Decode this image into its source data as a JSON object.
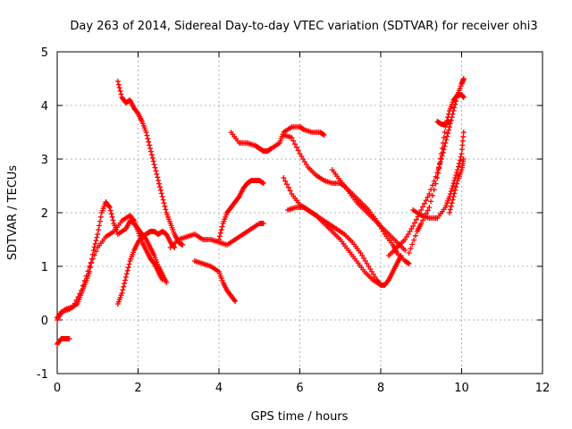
{
  "chart_data": {
    "type": "scatter",
    "title": "Day 263 of 2014, Sidereal Day-to-day VTEC variation (SDTVAR) for receiver ohi3",
    "xlabel": "GPS time / hours",
    "ylabel": "SDTVAR / TECUs",
    "xlim": [
      0,
      12
    ],
    "ylim": [
      -1,
      5
    ],
    "xticks": [
      0,
      2,
      4,
      6,
      8,
      10,
      12
    ],
    "yticks": [
      -1,
      0,
      1,
      2,
      3,
      4,
      5
    ],
    "xtick_labels": [
      "0",
      "2",
      "4",
      "6",
      "8",
      "10",
      "12"
    ],
    "ytick_labels": [
      "-1",
      "0",
      "1",
      "2",
      "3",
      "4",
      "5"
    ],
    "grid": true,
    "marker": "+",
    "color": "#ff0000",
    "series": [
      {
        "points": [
          [
            0.0,
            -0.45
          ],
          [
            0.1,
            -0.35
          ],
          [
            0.2,
            -0.35
          ],
          [
            0.3,
            -0.35
          ]
        ]
      },
      {
        "points": [
          [
            0.0,
            0.0
          ],
          [
            0.1,
            0.15
          ],
          [
            0.3,
            0.2
          ],
          [
            0.5,
            0.3
          ],
          [
            0.6,
            0.5
          ],
          [
            0.7,
            0.7
          ],
          [
            0.8,
            0.9
          ],
          [
            0.9,
            1.3
          ],
          [
            1.0,
            1.6
          ],
          [
            1.1,
            2.0
          ],
          [
            1.2,
            2.2
          ],
          [
            1.3,
            2.1
          ],
          [
            1.4,
            1.8
          ],
          [
            1.5,
            1.6
          ],
          [
            1.7,
            1.7
          ],
          [
            1.8,
            1.85
          ],
          [
            1.9,
            1.8
          ],
          [
            2.0,
            1.7
          ],
          [
            2.1,
            1.6
          ],
          [
            2.2,
            1.5
          ],
          [
            2.3,
            1.35
          ],
          [
            2.4,
            1.2
          ],
          [
            2.5,
            1.0
          ],
          [
            2.6,
            0.85
          ],
          [
            2.7,
            0.7
          ]
        ]
      },
      {
        "points": [
          [
            0.0,
            0.05
          ],
          [
            0.2,
            0.2
          ],
          [
            0.4,
            0.25
          ],
          [
            0.6,
            0.55
          ],
          [
            0.8,
            1.0
          ],
          [
            1.0,
            1.35
          ],
          [
            1.2,
            1.55
          ],
          [
            1.4,
            1.65
          ],
          [
            1.6,
            1.85
          ],
          [
            1.8,
            1.95
          ],
          [
            1.9,
            1.85
          ],
          [
            2.0,
            1.65
          ],
          [
            2.1,
            1.45
          ],
          [
            2.2,
            1.3
          ],
          [
            2.3,
            1.15
          ],
          [
            2.4,
            1.05
          ],
          [
            2.5,
            0.9
          ],
          [
            2.6,
            0.75
          ]
        ]
      },
      {
        "points": [
          [
            1.5,
            0.3
          ],
          [
            1.6,
            0.5
          ],
          [
            1.7,
            0.8
          ],
          [
            1.8,
            1.1
          ],
          [
            1.9,
            1.3
          ],
          [
            2.0,
            1.45
          ],
          [
            2.1,
            1.55
          ],
          [
            2.2,
            1.6
          ],
          [
            2.3,
            1.65
          ],
          [
            2.4,
            1.65
          ],
          [
            2.5,
            1.6
          ],
          [
            2.6,
            1.65
          ],
          [
            2.7,
            1.6
          ],
          [
            2.8,
            1.45
          ],
          [
            2.9,
            1.35
          ]
        ]
      },
      {
        "points": [
          [
            1.5,
            4.45
          ],
          [
            1.6,
            4.15
          ],
          [
            1.7,
            4.05
          ],
          [
            1.8,
            4.1
          ],
          [
            1.9,
            3.95
          ],
          [
            2.0,
            3.85
          ],
          [
            2.1,
            3.7
          ],
          [
            2.2,
            3.5
          ],
          [
            2.3,
            3.2
          ],
          [
            2.4,
            2.9
          ],
          [
            2.5,
            2.6
          ],
          [
            2.6,
            2.3
          ],
          [
            2.7,
            2.0
          ],
          [
            2.8,
            1.8
          ],
          [
            2.9,
            1.6
          ],
          [
            3.0,
            1.45
          ],
          [
            3.1,
            1.4
          ]
        ]
      },
      {
        "points": [
          [
            2.8,
            1.35
          ],
          [
            3.0,
            1.5
          ],
          [
            3.2,
            1.55
          ],
          [
            3.4,
            1.6
          ],
          [
            3.6,
            1.5
          ],
          [
            3.8,
            1.5
          ],
          [
            4.0,
            1.45
          ],
          [
            4.2,
            1.4
          ],
          [
            4.4,
            1.5
          ],
          [
            4.6,
            1.6
          ],
          [
            4.8,
            1.7
          ],
          [
            5.0,
            1.8
          ],
          [
            5.1,
            1.8
          ]
        ]
      },
      {
        "points": [
          [
            3.4,
            1.1
          ],
          [
            3.6,
            1.05
          ],
          [
            3.8,
            1.0
          ],
          [
            4.0,
            0.9
          ],
          [
            4.1,
            0.7
          ],
          [
            4.2,
            0.55
          ],
          [
            4.3,
            0.45
          ],
          [
            4.4,
            0.35
          ]
        ]
      },
      {
        "points": [
          [
            4.0,
            1.5
          ],
          [
            4.1,
            1.8
          ],
          [
            4.2,
            2.0
          ],
          [
            4.3,
            2.1
          ],
          [
            4.4,
            2.2
          ],
          [
            4.5,
            2.3
          ],
          [
            4.6,
            2.45
          ],
          [
            4.7,
            2.55
          ],
          [
            4.8,
            2.6
          ],
          [
            4.9,
            2.6
          ],
          [
            5.0,
            2.6
          ],
          [
            5.1,
            2.55
          ]
        ]
      },
      {
        "points": [
          [
            4.3,
            3.5
          ],
          [
            4.5,
            3.3
          ],
          [
            4.7,
            3.3
          ],
          [
            4.9,
            3.25
          ],
          [
            5.0,
            3.2
          ],
          [
            5.1,
            3.15
          ],
          [
            5.2,
            3.15
          ],
          [
            5.3,
            3.2
          ],
          [
            5.5,
            3.3
          ],
          [
            5.6,
            3.5
          ],
          [
            5.8,
            3.6
          ],
          [
            6.0,
            3.6
          ],
          [
            6.1,
            3.55
          ],
          [
            6.3,
            3.5
          ],
          [
            6.5,
            3.5
          ],
          [
            6.6,
            3.45
          ]
        ]
      },
      {
        "points": [
          [
            5.6,
            3.45
          ],
          [
            5.8,
            3.4
          ],
          [
            6.0,
            3.1
          ],
          [
            6.2,
            2.85
          ],
          [
            6.4,
            2.7
          ],
          [
            6.6,
            2.6
          ],
          [
            6.8,
            2.55
          ],
          [
            7.0,
            2.55
          ],
          [
            7.1,
            2.5
          ],
          [
            7.3,
            2.35
          ],
          [
            7.5,
            2.2
          ],
          [
            7.7,
            2.05
          ],
          [
            7.9,
            1.85
          ],
          [
            8.1,
            1.6
          ],
          [
            8.3,
            1.4
          ],
          [
            8.4,
            1.25
          ],
          [
            8.6,
            1.1
          ],
          [
            8.7,
            1.05
          ]
        ]
      },
      {
        "points": [
          [
            5.7,
            2.05
          ],
          [
            5.9,
            2.1
          ],
          [
            6.1,
            2.1
          ],
          [
            6.3,
            2.0
          ],
          [
            6.5,
            1.9
          ],
          [
            6.7,
            1.8
          ],
          [
            6.9,
            1.7
          ],
          [
            7.1,
            1.6
          ],
          [
            7.3,
            1.45
          ],
          [
            7.5,
            1.25
          ],
          [
            7.7,
            1.0
          ],
          [
            7.9,
            0.75
          ],
          [
            8.0,
            0.65
          ],
          [
            8.1,
            0.65
          ],
          [
            8.2,
            0.75
          ],
          [
            8.3,
            0.9
          ],
          [
            8.4,
            1.05
          ],
          [
            8.5,
            1.2
          ]
        ]
      },
      {
        "points": [
          [
            5.6,
            2.65
          ],
          [
            5.8,
            2.35
          ],
          [
            6.0,
            2.15
          ],
          [
            6.2,
            2.05
          ],
          [
            6.4,
            1.95
          ],
          [
            6.6,
            1.8
          ],
          [
            6.8,
            1.65
          ],
          [
            7.0,
            1.5
          ],
          [
            7.2,
            1.3
          ],
          [
            7.4,
            1.1
          ],
          [
            7.6,
            0.9
          ],
          [
            7.8,
            0.75
          ],
          [
            8.0,
            0.65
          ]
        ]
      },
      {
        "points": [
          [
            6.8,
            2.8
          ],
          [
            7.0,
            2.6
          ],
          [
            7.2,
            2.4
          ],
          [
            7.4,
            2.2
          ],
          [
            7.6,
            2.05
          ],
          [
            7.8,
            1.9
          ],
          [
            8.0,
            1.75
          ],
          [
            8.2,
            1.6
          ],
          [
            8.4,
            1.45
          ],
          [
            8.6,
            1.3
          ]
        ]
      },
      {
        "points": [
          [
            8.2,
            1.2
          ],
          [
            8.4,
            1.35
          ],
          [
            8.6,
            1.5
          ],
          [
            8.8,
            1.75
          ],
          [
            9.0,
            2.05
          ],
          [
            9.2,
            2.35
          ],
          [
            9.4,
            2.75
          ],
          [
            9.5,
            3.0
          ],
          [
            9.6,
            3.3
          ],
          [
            9.7,
            3.6
          ],
          [
            9.8,
            3.9
          ],
          [
            9.9,
            4.2
          ],
          [
            10.0,
            4.4
          ],
          [
            10.05,
            4.5
          ]
        ]
      },
      {
        "points": [
          [
            8.7,
            1.25
          ],
          [
            8.9,
            1.65
          ],
          [
            9.0,
            1.8
          ],
          [
            9.2,
            2.1
          ],
          [
            9.4,
            2.65
          ],
          [
            9.5,
            3.1
          ],
          [
            9.6,
            3.6
          ],
          [
            9.7,
            3.9
          ],
          [
            9.8,
            4.1
          ],
          [
            9.9,
            4.2
          ],
          [
            10.0,
            4.2
          ],
          [
            10.05,
            4.15
          ]
        ]
      },
      {
        "points": [
          [
            8.8,
            2.05
          ],
          [
            9.0,
            1.95
          ],
          [
            9.2,
            1.9
          ],
          [
            9.4,
            1.9
          ],
          [
            9.6,
            2.1
          ],
          [
            9.7,
            2.3
          ],
          [
            9.8,
            2.55
          ],
          [
            9.9,
            2.8
          ],
          [
            10.0,
            3.1
          ],
          [
            10.05,
            3.5
          ]
        ]
      },
      {
        "points": [
          [
            9.4,
            3.7
          ],
          [
            9.5,
            3.65
          ],
          [
            9.6,
            3.65
          ],
          [
            9.7,
            3.7
          ]
        ]
      },
      {
        "points": [
          [
            9.7,
            2.0
          ],
          [
            9.8,
            2.3
          ],
          [
            9.9,
            2.6
          ],
          [
            10.0,
            2.8
          ],
          [
            10.05,
            3.0
          ]
        ]
      }
    ]
  }
}
